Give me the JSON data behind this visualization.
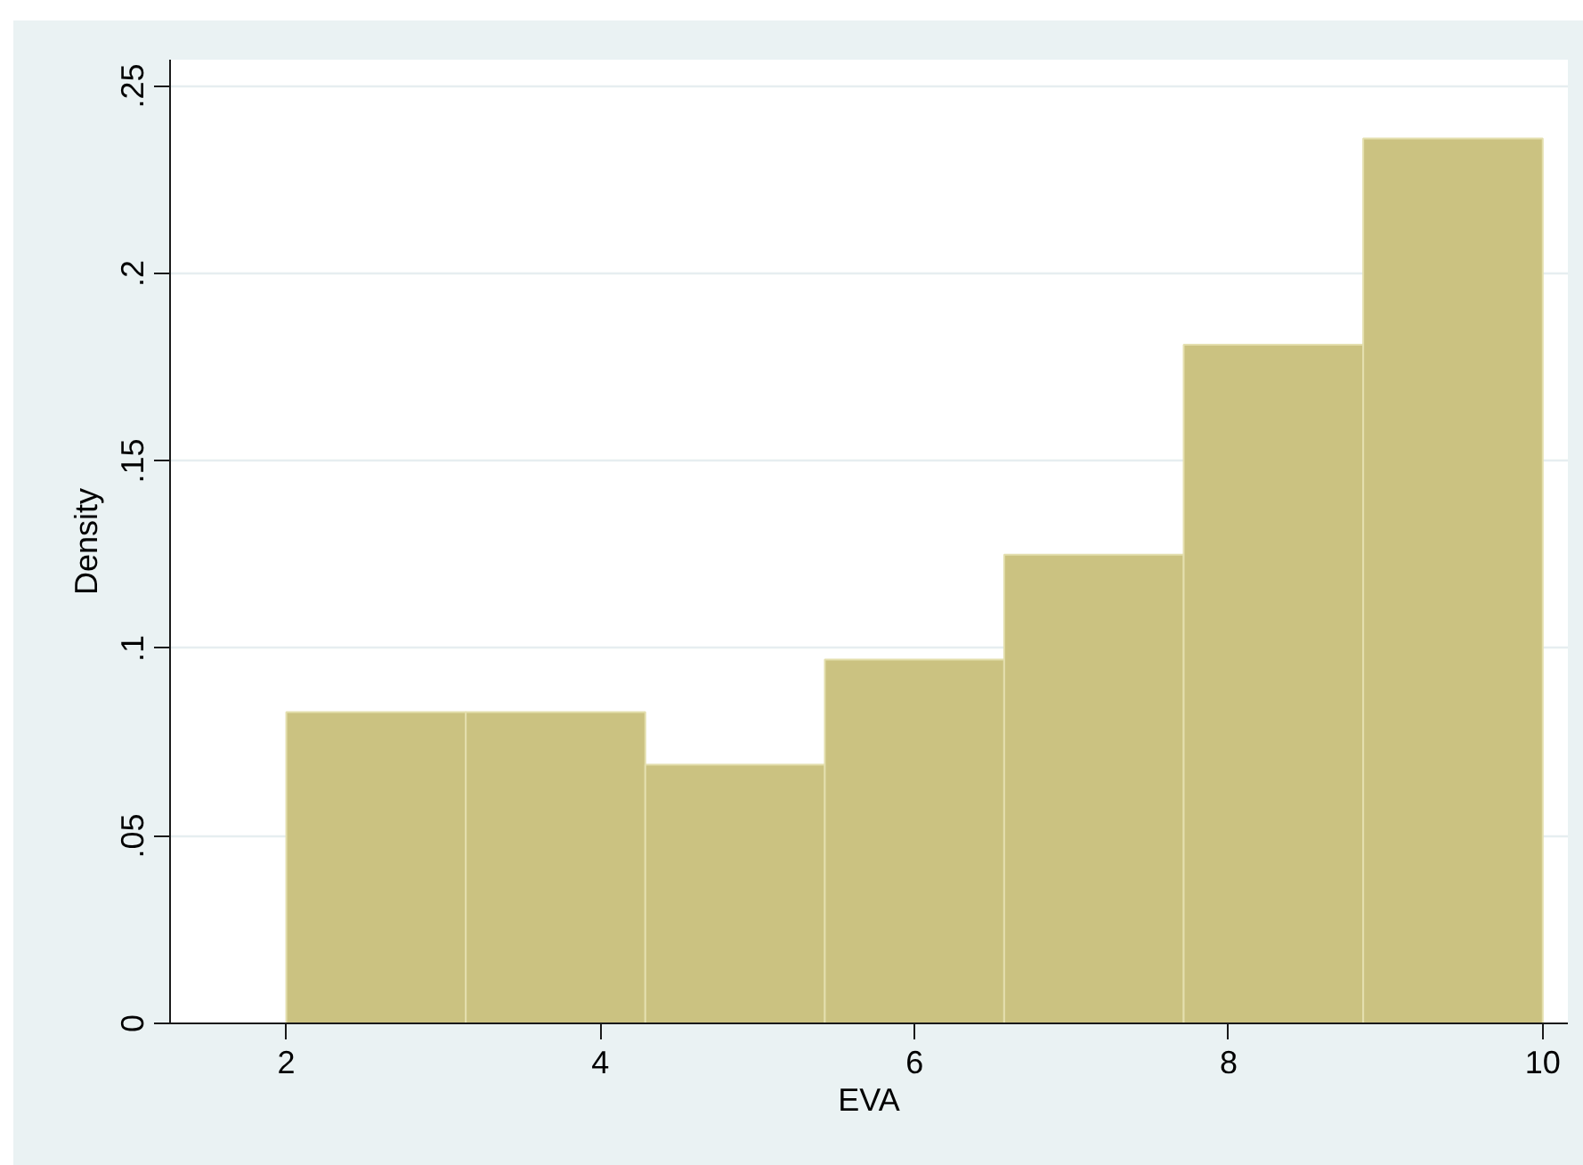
{
  "chart_data": {
    "type": "histogram",
    "xlabel": "EVA",
    "ylabel": "Density",
    "bins": [
      2,
      3.143,
      4.286,
      5.429,
      6.571,
      7.714,
      8.857,
      10
    ],
    "values": [
      0.083,
      0.083,
      0.069,
      0.097,
      0.125,
      0.181,
      0.236
    ],
    "color": "#cbc281",
    "xlim": [
      1.26,
      10.16
    ],
    "ylim": [
      0,
      0.257
    ],
    "xticks": [
      2,
      4,
      6,
      8,
      10
    ],
    "yticks": [
      0,
      {
        "value": 0.05,
        "label": ".05"
      },
      {
        "value": 0.1,
        "label": ".1"
      },
      {
        "value": 0.15,
        "label": ".15"
      },
      {
        "value": 0.2,
        "label": ".2"
      },
      {
        "value": 0.25,
        "label": ".25"
      }
    ],
    "grid": "y"
  }
}
